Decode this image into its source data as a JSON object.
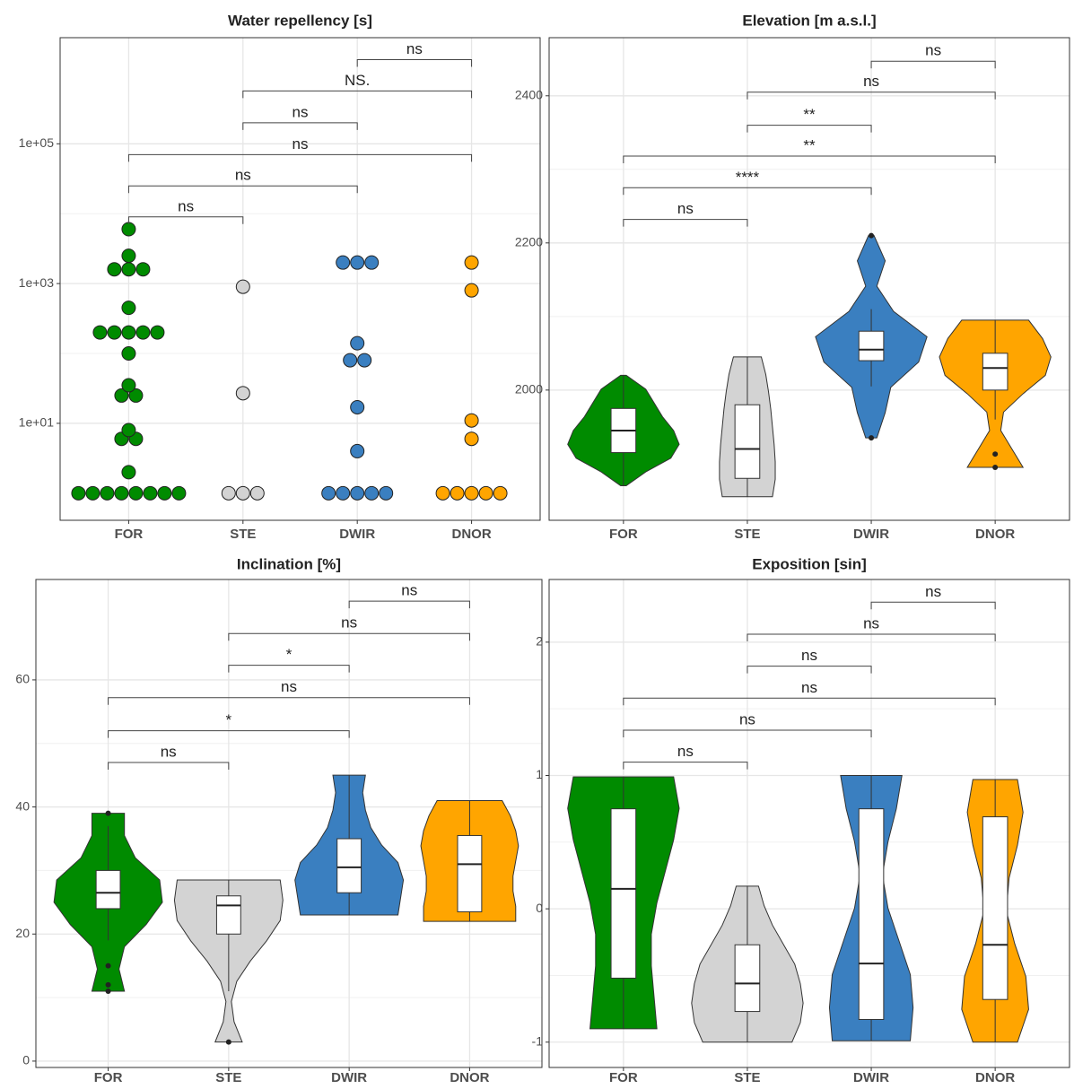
{
  "chart_data": [
    {
      "type": "dotplot",
      "title": "Water repellency [s]",
      "categories": [
        "FOR",
        "STE",
        "DWIR",
        "DNOR"
      ],
      "colors": [
        "#008b00",
        "#d3d3d3",
        "#3a7fc0",
        "#ffa500"
      ],
      "log_scale": true,
      "grid": true,
      "ylim": [
        0.41,
        3300000
      ],
      "yticks": [
        {
          "value": 10,
          "label": "1e+01"
        },
        {
          "value": 1000,
          "label": "1e+03"
        },
        {
          "value": 100000,
          "label": "1e+05"
        }
      ],
      "values": [
        [
          1,
          1,
          1,
          1,
          1,
          1,
          1,
          1,
          2,
          6,
          6,
          8,
          25,
          25,
          35,
          100,
          200,
          200,
          200,
          200,
          200,
          450,
          1600,
          1600,
          1600,
          2500,
          6000
        ],
        [
          1,
          1,
          1,
          27,
          900
        ],
        [
          1,
          1,
          1,
          1,
          1,
          4,
          17,
          80,
          80,
          140,
          2000,
          2000,
          2000
        ],
        [
          1,
          1,
          1,
          1,
          1,
          6,
          11,
          800,
          2000
        ]
      ],
      "comparisons": [
        {
          "pair": [
            "FOR",
            "STE"
          ],
          "y": 9000,
          "label": "ns"
        },
        {
          "pair": [
            "FOR",
            "DWIR"
          ],
          "y": 25000,
          "label": "ns"
        },
        {
          "pair": [
            "FOR",
            "DNOR"
          ],
          "y": 70000,
          "label": "ns"
        },
        {
          "pair": [
            "STE",
            "DWIR"
          ],
          "y": 200000,
          "label": "ns"
        },
        {
          "pair": [
            "STE",
            "DNOR"
          ],
          "y": 570000,
          "label": "NS."
        },
        {
          "pair": [
            "DWIR",
            "DNOR"
          ],
          "y": 1600000,
          "label": "ns"
        }
      ]
    },
    {
      "type": "violin",
      "title": "Elevation [m a.s.l.]",
      "categories": [
        "FOR",
        "STE",
        "DWIR",
        "DNOR"
      ],
      "colors": [
        "#008b00",
        "#d3d3d3",
        "#3a7fc0",
        "#ffa500"
      ],
      "grid": true,
      "ylim": [
        1823,
        2479
      ],
      "yticks": [
        2000,
        2200,
        2400
      ],
      "violins": [
        {
          "violin_min": 1870,
          "violin_max": 2020,
          "density": [
            0.05,
            0.4,
            0.85,
            1,
            0.9,
            0.7,
            0.55,
            0.4,
            0.05
          ],
          "box": {
            "whisker_low": 1870,
            "q1": 1915,
            "median": 1945,
            "q3": 1975,
            "whisker_high": 2020
          },
          "outliers": []
        },
        {
          "violin_min": 1855,
          "violin_max": 2045,
          "density": [
            0.45,
            0.5,
            0.5,
            0.48,
            0.45,
            0.42,
            0.38,
            0.33,
            0.25
          ],
          "box": {
            "whisker_low": 1855,
            "q1": 1880,
            "median": 1920,
            "q3": 1980,
            "whisker_high": 2045
          },
          "outliers": []
        },
        {
          "violin_min": 1935,
          "violin_max": 2210,
          "density": [
            0.1,
            0.25,
            0.35,
            0.85,
            1,
            0.4,
            0.1,
            0.25,
            0.05
          ],
          "box": {
            "whisker_low": 2005,
            "q1": 2040,
            "median": 2055,
            "q3": 2080,
            "whisker_high": 2110
          },
          "outliers": [
            1935,
            2210
          ]
        },
        {
          "violin_min": 1895,
          "violin_max": 2095,
          "density": [
            0.5,
            0.3,
            0.1,
            0.15,
            0.5,
            0.9,
            1,
            0.85,
            0.6
          ],
          "box": {
            "whisker_low": 1960,
            "q1": 2000,
            "median": 2030,
            "q3": 2050,
            "whisker_high": 2095
          },
          "outliers": [
            1913,
            1895
          ]
        }
      ],
      "comparisons": [
        {
          "pair": [
            "FOR",
            "STE"
          ],
          "y": 2232,
          "label": "ns"
        },
        {
          "pair": [
            "FOR",
            "DWIR"
          ],
          "y": 2275,
          "label": "****"
        },
        {
          "pair": [
            "FOR",
            "DNOR"
          ],
          "y": 2318,
          "label": "**"
        },
        {
          "pair": [
            "STE",
            "DWIR"
          ],
          "y": 2360,
          "label": "**"
        },
        {
          "pair": [
            "STE",
            "DNOR"
          ],
          "y": 2405,
          "label": "ns"
        },
        {
          "pair": [
            "DWIR",
            "DNOR"
          ],
          "y": 2447,
          "label": "ns"
        }
      ]
    },
    {
      "type": "violin",
      "title": "Inclination [%]",
      "categories": [
        "FOR",
        "STE",
        "DWIR",
        "DNOR"
      ],
      "colors": [
        "#008b00",
        "#d3d3d3",
        "#3a7fc0",
        "#ffa500"
      ],
      "grid": true,
      "ylim": [
        -1,
        75.8
      ],
      "yticks": [
        0,
        20,
        40,
        60
      ],
      "violins": [
        {
          "violin_min": 11,
          "violin_max": 39,
          "density": [
            0.3,
            0.2,
            0.3,
            0.7,
            1,
            0.95,
            0.5,
            0.3,
            0.3
          ],
          "box": {
            "whisker_low": 19,
            "q1": 24,
            "median": 26.5,
            "q3": 30,
            "whisker_high": 37
          },
          "outliers": [
            15,
            12,
            11,
            39
          ]
        },
        {
          "violin_min": 3,
          "violin_max": 28.5,
          "density": [
            0.25,
            0.1,
            0.05,
            0.15,
            0.4,
            0.7,
            0.95,
            1,
            0.95
          ],
          "box": {
            "whisker_low": 11,
            "q1": 20,
            "median": 24.5,
            "q3": 26,
            "whisker_high": 28.5
          },
          "outliers": [
            3
          ]
        },
        {
          "violin_min": 23,
          "violin_max": 45,
          "density": [
            0.9,
            0.95,
            1,
            0.9,
            0.6,
            0.4,
            0.3,
            0.25,
            0.3
          ],
          "box": {
            "whisker_low": 23,
            "q1": 26.5,
            "median": 30.5,
            "q3": 35,
            "whisker_high": 45
          },
          "outliers": []
        },
        {
          "violin_min": 22,
          "violin_max": 41,
          "density": [
            0.85,
            0.85,
            0.8,
            0.8,
            0.85,
            0.9,
            0.85,
            0.75,
            0.6
          ],
          "box": {
            "whisker_low": 22,
            "q1": 23.5,
            "median": 31,
            "q3": 35.5,
            "whisker_high": 41
          },
          "outliers": []
        }
      ],
      "comparisons": [
        {
          "pair": [
            "FOR",
            "STE"
          ],
          "y": 47,
          "label": "ns"
        },
        {
          "pair": [
            "FOR",
            "DWIR"
          ],
          "y": 52,
          "label": "*"
        },
        {
          "pair": [
            "FOR",
            "DNOR"
          ],
          "y": 57.2,
          "label": "ns"
        },
        {
          "pair": [
            "STE",
            "DWIR"
          ],
          "y": 62.3,
          "label": "*"
        },
        {
          "pair": [
            "STE",
            "DNOR"
          ],
          "y": 67.3,
          "label": "ns"
        },
        {
          "pair": [
            "DWIR",
            "DNOR"
          ],
          "y": 72.4,
          "label": "ns"
        }
      ]
    },
    {
      "type": "violin",
      "title": "Exposition [sin]",
      "categories": [
        "FOR",
        "STE",
        "DWIR",
        "DNOR"
      ],
      "colors": [
        "#008b00",
        "#d3d3d3",
        "#3a7fc0",
        "#ffa500"
      ],
      "grid": true,
      "ylim": [
        -1.19,
        2.47
      ],
      "yticks": [
        -1,
        0,
        1,
        2
      ],
      "violins": [
        {
          "violin_min": -0.9,
          "violin_max": 0.99,
          "density": [
            0.6,
            0.55,
            0.5,
            0.5,
            0.6,
            0.75,
            0.9,
            1,
            0.9
          ],
          "box": {
            "whisker_low": -0.9,
            "q1": -0.52,
            "median": 0.15,
            "q3": 0.75,
            "whisker_high": 0.99
          },
          "outliers": []
        },
        {
          "violin_min": -1,
          "violin_max": 0.17,
          "density": [
            0.8,
            0.95,
            1,
            0.95,
            0.85,
            0.65,
            0.45,
            0.3,
            0.2
          ],
          "box": {
            "whisker_low": -1,
            "q1": -0.77,
            "median": -0.56,
            "q3": -0.27,
            "whisker_high": 0.17
          },
          "outliers": []
        },
        {
          "violin_min": -0.99,
          "violin_max": 1,
          "density": [
            0.7,
            0.75,
            0.7,
            0.5,
            0.3,
            0.2,
            0.3,
            0.45,
            0.55
          ],
          "box": {
            "whisker_low": -0.99,
            "q1": -0.83,
            "median": -0.41,
            "q3": 0.75,
            "whisker_high": 1
          },
          "outliers": []
        },
        {
          "violin_min": -1,
          "violin_max": 0.97,
          "density": [
            0.4,
            0.6,
            0.55,
            0.35,
            0.2,
            0.25,
            0.4,
            0.5,
            0.4
          ],
          "box": {
            "whisker_low": -1,
            "q1": -0.68,
            "median": -0.27,
            "q3": 0.69,
            "whisker_high": 0.97
          },
          "outliers": []
        }
      ],
      "comparisons": [
        {
          "pair": [
            "FOR",
            "STE"
          ],
          "y": 1.1,
          "label": "ns"
        },
        {
          "pair": [
            "FOR",
            "DWIR"
          ],
          "y": 1.34,
          "label": "ns"
        },
        {
          "pair": [
            "FOR",
            "DNOR"
          ],
          "y": 1.58,
          "label": "ns"
        },
        {
          "pair": [
            "STE",
            "DWIR"
          ],
          "y": 1.82,
          "label": "ns"
        },
        {
          "pair": [
            "STE",
            "DNOR"
          ],
          "y": 2.06,
          "label": "ns"
        },
        {
          "pair": [
            "DWIR",
            "DNOR"
          ],
          "y": 2.3,
          "label": "ns"
        }
      ]
    }
  ]
}
